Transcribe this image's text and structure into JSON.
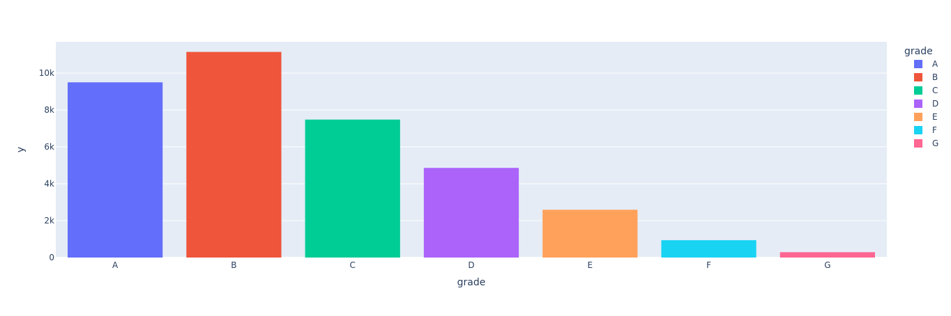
{
  "chart_data": {
    "type": "bar",
    "categories": [
      "A",
      "B",
      "C",
      "D",
      "E",
      "F",
      "G"
    ],
    "values": [
      9500,
      11150,
      7480,
      4860,
      2590,
      940,
      290
    ],
    "xlabel": "grade",
    "ylabel": "y",
    "ylim": [
      0,
      11700
    ],
    "yticks": [
      0,
      2000,
      4000,
      6000,
      8000,
      10000
    ],
    "ytick_labels": [
      "0",
      "2k",
      "4k",
      "6k",
      "8k",
      "10k"
    ],
    "grid": true,
    "legend": {
      "title": "grade",
      "placement": "right",
      "entries": [
        "A",
        "B",
        "C",
        "D",
        "E",
        "F",
        "G"
      ]
    },
    "colors": [
      "#636efa",
      "#ef553b",
      "#00cc96",
      "#ab63fa",
      "#ffa15a",
      "#19d3f3",
      "#ff6692"
    ],
    "plot_background": "#e5ecf6"
  }
}
